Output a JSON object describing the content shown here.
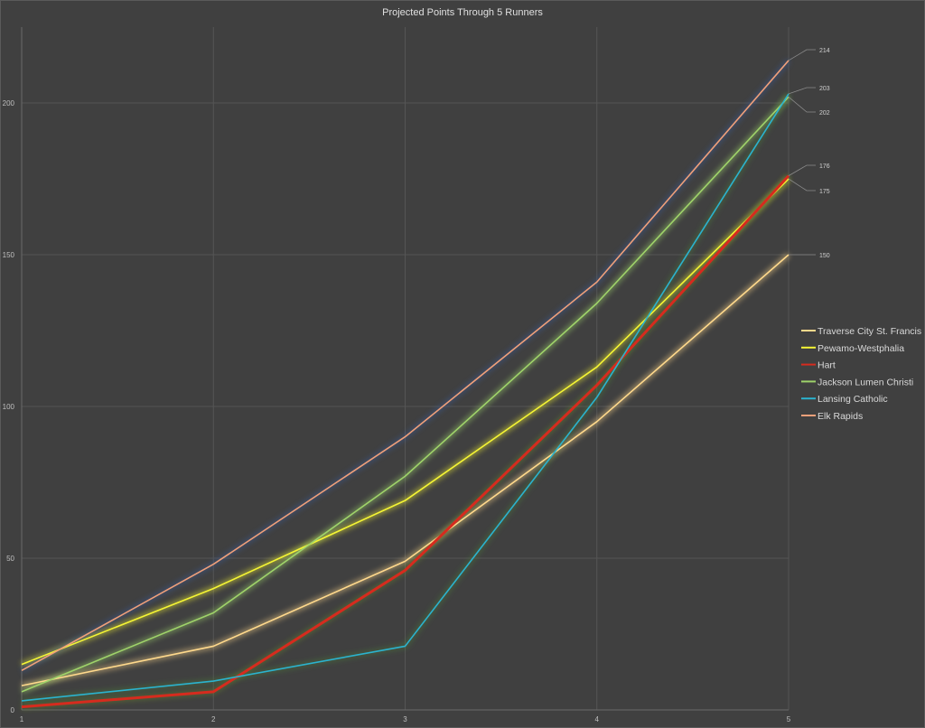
{
  "chart_data": {
    "type": "line",
    "title": "Projected Points Through 5 Runners",
    "xlabel": "",
    "ylabel": "",
    "x": [
      1,
      2,
      3,
      4,
      5
    ],
    "x_tick_labels": [
      "1",
      "2",
      "3",
      "4",
      "5"
    ],
    "ylim": [
      0,
      225
    ],
    "y_ticks": [
      0,
      50,
      100,
      150,
      200
    ],
    "y_tick_labels": [
      "0",
      "50",
      "100",
      "150",
      "200"
    ],
    "grid": true,
    "legend_position": "right",
    "series": [
      {
        "name": "Traverse City St. Francis",
        "color": "#ffd98c",
        "values": [
          8,
          21,
          49,
          95,
          150
        ],
        "end_label": "150"
      },
      {
        "name": "Pewamo-Westphalia",
        "color": "#f5f534",
        "values": [
          15,
          40,
          69,
          113,
          175
        ],
        "end_label": "175"
      },
      {
        "name": "Hart",
        "color": "#d62b1e",
        "values": [
          1,
          6,
          46,
          107,
          176
        ],
        "end_label": "176"
      },
      {
        "name": "Jackson Lumen Christi",
        "color": "#9fd36a",
        "values": [
          6,
          32,
          77,
          134,
          202
        ],
        "end_label": "202"
      },
      {
        "name": "Lansing Catholic",
        "color": "#2bb3cf",
        "values": [
          3,
          9.5,
          21,
          103,
          203
        ],
        "end_label": "203"
      },
      {
        "name": "Elk Rapids",
        "color": "#f0a07a",
        "values": [
          13,
          48,
          90,
          141,
          214
        ],
        "end_label": "214"
      }
    ]
  }
}
